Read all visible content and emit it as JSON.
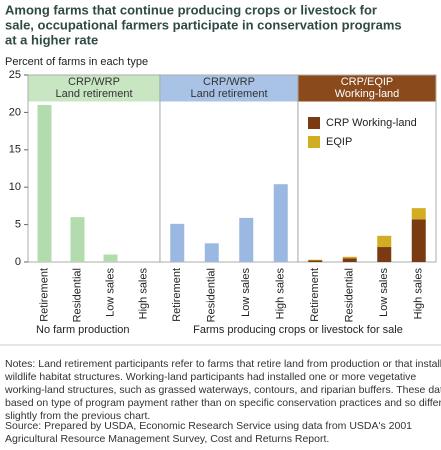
{
  "chart_data": {
    "type": "bar",
    "title": [
      "Among farms that continue producing crops or livestock for",
      "sale, occupational farmers participate in conservation programs",
      "at a higher rate"
    ],
    "ylabel": "Percent of farms in each type",
    "ylim": [
      0,
      25
    ],
    "yticks": [
      0,
      5,
      10,
      15,
      20,
      25
    ],
    "panels": [
      {
        "header": [
          "CRP/WRP",
          "Land retirement"
        ],
        "header_color": "#c9e6c3",
        "header_text_color": "#333333",
        "categories": [
          "Retirement",
          "Residential",
          "Low sales",
          "High sales"
        ],
        "series": [
          {
            "color": "#b3dcae",
            "values": [
              21,
              6,
              1,
              0
            ]
          }
        ]
      },
      {
        "header": [
          "CRP/WRP",
          "Land retirement"
        ],
        "header_color": "#a9c3e6",
        "header_text_color": "#333333",
        "categories": [
          "Retirement",
          "Residential",
          "Low sales",
          "High sales"
        ],
        "series": [
          {
            "color": "#9ab8e1",
            "values": [
              5.1,
              2.5,
              5.9,
              10.4
            ]
          }
        ]
      },
      {
        "header": [
          "CRP/EQIP",
          "Working-land"
        ],
        "header_color": "#8a4a1c",
        "header_text_color": "#ffffff",
        "categories": [
          "Retirement",
          "Residential",
          "Low sales",
          "High sales"
        ],
        "series": [
          {
            "name": "CRP Working-land",
            "color": "#7a3a12",
            "values": [
              0.2,
              0.5,
              2.0,
              5.7
            ]
          },
          {
            "name": "EQIP",
            "color": "#d2ad22",
            "values": [
              0.1,
              0.2,
              1.5,
              1.5
            ]
          }
        ]
      }
    ],
    "groups": [
      "No farm production",
      "Farms producing crops or livestock for sale"
    ],
    "notes": [
      "Notes:  Land retirement participants refer to farms that retire land from production or that install",
      "wildlife habitat structures. Working-land participants had installed one or more vegetative",
      "working-land structures, such as grassed waterways, contours, and riparian buffers. These data are",
      "based on type of program payment rather than on specific conservation practices and so differ",
      "slightly from the previous chart."
    ],
    "source": [
      "Source: Prepared by USDA, Economic Research Service using data from USDA's 2001",
      "Agricultural Resource Management Survey, Cost and Returns Report."
    ]
  }
}
